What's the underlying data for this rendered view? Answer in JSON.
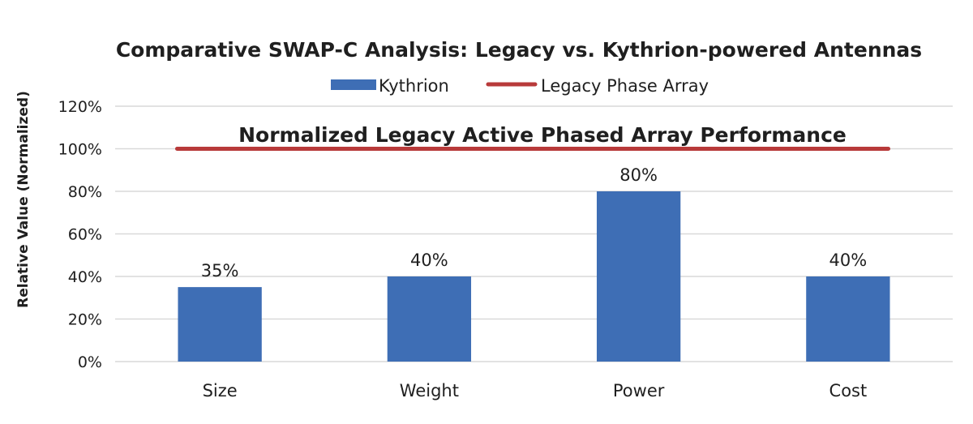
{
  "chart_data": {
    "type": "bar",
    "title": "Comparative SWAP-C Analysis: Legacy vs. Kythrion-powered Antennas",
    "ylabel": "Relative Value (Normalized)",
    "xlabel": "",
    "categories": [
      "Size",
      "Weight",
      "Power",
      "Cost"
    ],
    "series": [
      {
        "name": "Kythrion",
        "type": "bar",
        "color": "#3e6eb5",
        "values": [
          35,
          40,
          80,
          40
        ],
        "data_labels": [
          "35%",
          "40%",
          "80%",
          "40%"
        ]
      },
      {
        "name": "Legacy Phase Array",
        "type": "line",
        "color": "#b83a3a",
        "value": 100
      }
    ],
    "ylim": [
      0,
      120
    ],
    "yticks": [
      0,
      20,
      40,
      60,
      80,
      100,
      120
    ],
    "ytick_labels": [
      "0%",
      "20%",
      "40%",
      "60%",
      "80%",
      "100%",
      "120%"
    ],
    "grid": true,
    "legend_position": "top-center",
    "annotation": "Normalized Legacy Active Phased Array Performance"
  }
}
